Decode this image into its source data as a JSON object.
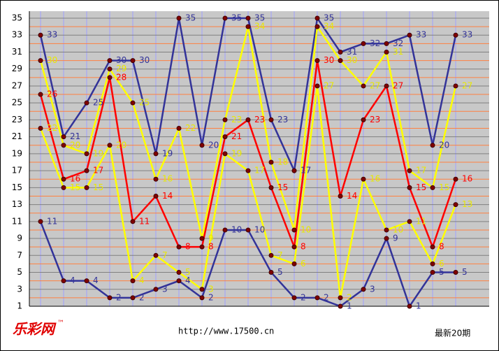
{
  "chart_data": {
    "type": "line",
    "series": [
      {
        "color": "#333399",
        "values": [
          33,
          21,
          25,
          30,
          30,
          19,
          35,
          20,
          35,
          35,
          23,
          17,
          35,
          31,
          32,
          32,
          33,
          20,
          33
        ]
      },
      {
        "color": "#ffff00",
        "values": [
          30,
          20,
          19,
          29,
          25,
          16,
          22,
          9,
          23,
          34,
          18,
          10,
          34,
          30,
          27,
          31,
          17,
          15,
          27
        ]
      },
      {
        "color": "#ff0000",
        "values": [
          26,
          16,
          17,
          28,
          11,
          14,
          8,
          8,
          21,
          23,
          15,
          8,
          30,
          14,
          23,
          27,
          15,
          8,
          16
        ]
      },
      {
        "color": "#ffff00",
        "values": [
          22,
          15,
          15,
          20,
          4,
          7,
          5,
          3,
          19,
          17,
          7,
          6,
          27,
          2,
          16,
          10,
          11,
          6,
          13
        ]
      },
      {
        "color": "#333399",
        "values": [
          11,
          4,
          4,
          2,
          2,
          3,
          4,
          2,
          10,
          10,
          5,
          2,
          2,
          1,
          3,
          9,
          1,
          5,
          5
        ]
      }
    ],
    "ylim": [
      1,
      35
    ],
    "yticks": [
      1,
      3,
      5,
      7,
      9,
      11,
      13,
      15,
      17,
      19,
      21,
      23,
      25,
      27,
      29,
      31,
      33,
      35
    ],
    "grid": true,
    "footer": {
      "logo": "乐彩网",
      "trademark": "™",
      "url": "http://www.17500.cn",
      "note": "最新20期"
    }
  }
}
